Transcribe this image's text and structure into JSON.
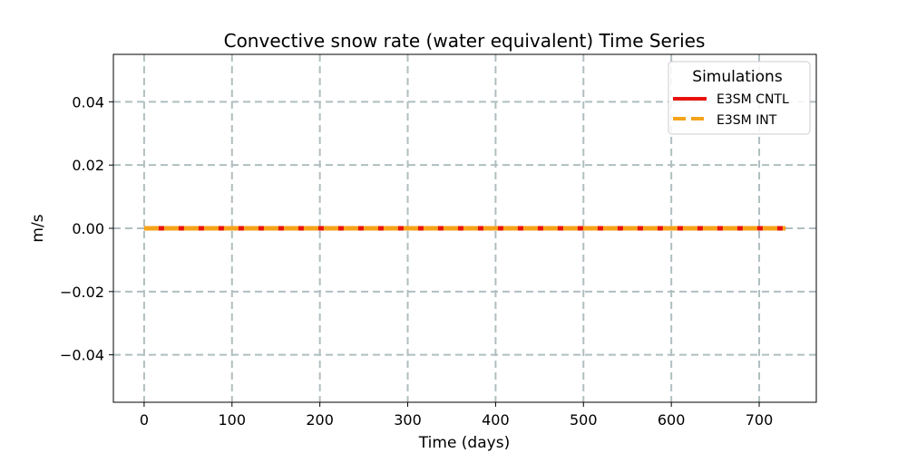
{
  "chart_data": {
    "type": "line",
    "title": "Convective snow rate (water equivalent) Time Series",
    "xlabel": "Time (days)",
    "ylabel": "m/s",
    "xlim": [
      -35,
      765
    ],
    "ylim": [
      -0.055,
      0.055
    ],
    "x_ticks": [
      0,
      100,
      200,
      300,
      400,
      500,
      600,
      700
    ],
    "y_ticks": [
      -0.04,
      -0.02,
      0.0,
      0.02,
      0.04
    ],
    "y_tick_labels": [
      "−0.04",
      "−0.02",
      "0.00",
      "0.02",
      "0.04"
    ],
    "grid": true,
    "legend_title": "Simulations",
    "legend_position": "top-right",
    "series": [
      {
        "name": "E3SM CNTL",
        "color": "#e8120c",
        "style": "solid",
        "x": [
          0,
          730
        ],
        "values": [
          0,
          0
        ]
      },
      {
        "name": "E3SM INT",
        "color": "#f5a31a",
        "style": "dashed",
        "x": [
          0,
          730
        ],
        "values": [
          0,
          0
        ]
      }
    ]
  }
}
